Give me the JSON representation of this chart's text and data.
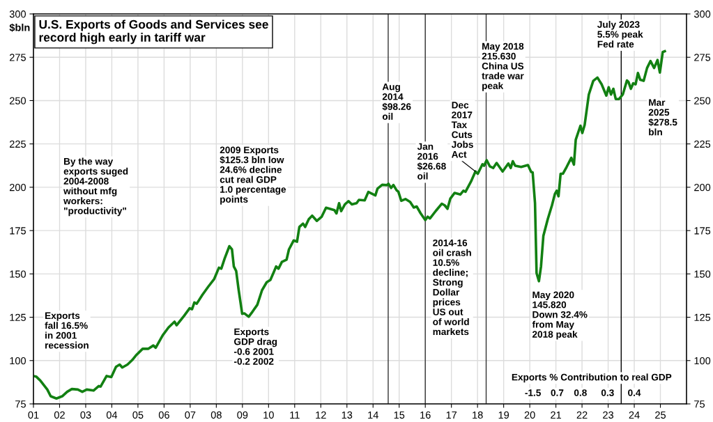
{
  "chart_data": {
    "type": "line",
    "title": "U.S. Exports of Goods and Services see\nrecord high early in tariff war",
    "ylabel": "$bln",
    "series": [
      {
        "color": "#128012",
        "x": [
          2001.0,
          2001.1,
          2001.26,
          2001.53,
          2001.66,
          2001.88,
          2002.1,
          2002.29,
          2002.47,
          2002.7,
          2002.87,
          2003.04,
          2003.3,
          2003.5,
          2003.57,
          2003.8,
          2003.98,
          2004.16,
          2004.3,
          2004.4,
          2004.6,
          2004.78,
          2004.92,
          2005.18,
          2005.4,
          2005.59,
          2005.68,
          2005.95,
          2006.17,
          2006.4,
          2006.48,
          2006.76,
          2006.98,
          2007.07,
          2007.16,
          2007.25,
          2007.47,
          2007.69,
          2007.92,
          2008.1,
          2008.19,
          2008.32,
          2008.5,
          2008.6,
          2008.67,
          2008.76,
          2008.85,
          2008.99,
          2009.08,
          2009.24,
          2009.39,
          2009.57,
          2009.75,
          2009.93,
          2010.07,
          2010.2,
          2010.29,
          2010.38,
          2010.51,
          2010.69,
          2010.78,
          2010.96,
          2011.09,
          2011.18,
          2011.32,
          2011.4,
          2011.54,
          2011.67,
          2011.85,
          2012.03,
          2012.2,
          2012.52,
          2012.6,
          2012.7,
          2012.78,
          2012.92,
          2013.06,
          2013.19,
          2013.37,
          2013.46,
          2013.68,
          2013.82,
          2014.09,
          2014.17,
          2014.35,
          2014.53,
          2014.59,
          2014.69,
          2014.78,
          2014.9,
          2014.97,
          2015.08,
          2015.24,
          2015.42,
          2015.56,
          2015.67,
          2015.82,
          2016.0,
          2016.09,
          2016.18,
          2016.4,
          2016.63,
          2016.74,
          2016.85,
          2016.96,
          2017.12,
          2017.34,
          2017.46,
          2017.54,
          2017.75,
          2017.92,
          2018.01,
          2018.19,
          2018.25,
          2018.35,
          2018.47,
          2018.6,
          2018.73,
          2018.96,
          2019.18,
          2019.27,
          2019.35,
          2019.44,
          2019.67,
          2019.93,
          2020.05,
          2020.11,
          2020.2,
          2020.26,
          2020.35,
          2020.43,
          2020.52,
          2020.69,
          2020.85,
          2020.96,
          2021.03,
          2021.1,
          2021.18,
          2021.27,
          2021.41,
          2021.59,
          2021.69,
          2021.76,
          2021.94,
          2022.01,
          2022.1,
          2022.26,
          2022.43,
          2022.59,
          2022.75,
          2022.93,
          2023.02,
          2023.11,
          2023.2,
          2023.29,
          2023.42,
          2023.56,
          2023.72,
          2023.78,
          2023.87,
          2023.96,
          2024.05,
          2024.14,
          2024.23,
          2024.36,
          2024.49,
          2024.62,
          2024.76,
          2024.89,
          2024.98,
          2025.09,
          2025.17
        ],
        "values": [
          91.1,
          90.8,
          88.5,
          83.3,
          79.4,
          78.1,
          79.4,
          82,
          83.6,
          83.3,
          82,
          83.3,
          82.7,
          85.3,
          85,
          91.1,
          90.5,
          96.4,
          97.7,
          96,
          97.7,
          100.3,
          102.9,
          106.8,
          106.8,
          108.7,
          107.4,
          114.6,
          119.1,
          122.4,
          120.4,
          125.7,
          130.2,
          129.6,
          133.5,
          132.8,
          138,
          142.6,
          147.1,
          153.6,
          153,
          158.9,
          166,
          164.1,
          154.3,
          151.7,
          141.3,
          127,
          127.2,
          125.3,
          128.3,
          132.2,
          140.6,
          145.2,
          146.5,
          151,
          154.3,
          153,
          156.9,
          158.2,
          164.1,
          169.3,
          168.6,
          177.1,
          179,
          177.1,
          181.6,
          183.6,
          180.6,
          182.9,
          188.2,
          186.8,
          184.9,
          190.8,
          186.2,
          190.1,
          192,
          190.1,
          190.8,
          192.7,
          192.4,
          197.3,
          195.3,
          199.2,
          201.4,
          201.2,
          202,
          199.6,
          201.3,
          198.3,
          197.4,
          192.2,
          193.2,
          191.5,
          188.3,
          188.9,
          185,
          181.1,
          183,
          182,
          186.3,
          190.5,
          189.6,
          187.6,
          193.5,
          196.7,
          195.8,
          198,
          197.4,
          203.3,
          209.1,
          207.8,
          213.3,
          212.4,
          215.6,
          212.1,
          211.1,
          214,
          209.1,
          213.7,
          211.1,
          215,
          212.4,
          211.7,
          212.8,
          208.9,
          208.5,
          190.9,
          150.4,
          145.8,
          154.3,
          171.9,
          181.7,
          189.6,
          196.1,
          198,
          194.8,
          207.8,
          207.8,
          211.7,
          217,
          213.1,
          227.4,
          235.5,
          231.3,
          235.9,
          253.5,
          261.4,
          263.3,
          259.4,
          252.9,
          257.7,
          253.5,
          256.8,
          250.9,
          250.9,
          253.5,
          261.6,
          260.7,
          256.8,
          260,
          259.4,
          265.9,
          262,
          261.4,
          268.8,
          272.8,
          268.8,
          273.4,
          266.2,
          278,
          278.5
        ]
      }
    ],
    "xlim": [
      2001,
      2026
    ],
    "xticks": [
      {
        "value": 2001,
        "label": "01"
      },
      {
        "value": 2002,
        "label": "02"
      },
      {
        "value": 2003,
        "label": "03"
      },
      {
        "value": 2004,
        "label": "04"
      },
      {
        "value": 2005,
        "label": "05"
      },
      {
        "value": 2006,
        "label": "06"
      },
      {
        "value": 2007,
        "label": "07"
      },
      {
        "value": 2008,
        "label": "08"
      },
      {
        "value": 2009,
        "label": "09"
      },
      {
        "value": 2010,
        "label": "10"
      },
      {
        "value": 2011,
        "label": "11"
      },
      {
        "value": 2012,
        "label": "12"
      },
      {
        "value": 2013,
        "label": "13"
      },
      {
        "value": 2014,
        "label": "14"
      },
      {
        "value": 2015,
        "label": "15"
      },
      {
        "value": 2016,
        "label": "16"
      },
      {
        "value": 2017,
        "label": "17"
      },
      {
        "value": 2018,
        "label": "18"
      },
      {
        "value": 2019,
        "label": "19"
      },
      {
        "value": 2020,
        "label": "20"
      },
      {
        "value": 2021,
        "label": "21"
      },
      {
        "value": 2022,
        "label": "22"
      },
      {
        "value": 2023,
        "label": "23"
      },
      {
        "value": 2024,
        "label": "24"
      },
      {
        "value": 2025,
        "label": "25"
      }
    ],
    "ylim": [
      75,
      300
    ],
    "yticks": [
      75,
      100,
      125,
      150,
      175,
      200,
      225,
      250,
      275,
      300
    ],
    "y2lim": [
      75,
      300
    ],
    "y2ticks": [
      75,
      100,
      125,
      150,
      175,
      200,
      225,
      250,
      275,
      300
    ],
    "grid": true,
    "marker": "none",
    "line_style": "solid",
    "ref_lines": [
      {
        "axis": "x",
        "value": 2014.58,
        "color": "#333333"
      },
      {
        "axis": "x",
        "value": 2016.0,
        "color": "#333333"
      },
      {
        "axis": "x",
        "value": 2018.33,
        "color": "#333333"
      },
      {
        "axis": "x",
        "value": 2023.5,
        "color": "#000000"
      }
    ],
    "annotations": [
      "By the way\nexports suged\n2004-2008\nwithout mfg\nworkers:\n\"productivity\"",
      "Exports\nfall 16.5%\nin 2001\nrecession",
      "2009 Exports\n$125.3 bln low\n24.6% decline\ncut real GDP\n1.0 percentage\npoints",
      "Exports\nGDP drag\n-0.6 2001\n-0.2 2002",
      "Aug\n2014\n$98.26\noil",
      "Jan\n2016\n$26.68\noil",
      {
        "text": "Dec\n2017\nTax\nCuts\nJobs\nAct",
        "x": 2017.92,
        "y": 209.1
      },
      "May 2018\n215.630\nChina US\ntrade war\npeak",
      "July 2023\n5.5% peak\nFed rate",
      "Mar\n2025\n$278.5\nbln",
      "2014-16\noil crash\n10.5%\ndecline;\nStrong\nDollar\nprices\nUS out\nof world\nmarkets",
      "May 2020\n145.820\nDown 32.4%\nfrom May\n2018 peak",
      "Exports % Contribution to real GDP",
      "-1.5",
      "0.7",
      "0.8",
      "0.3",
      "0.4"
    ]
  }
}
